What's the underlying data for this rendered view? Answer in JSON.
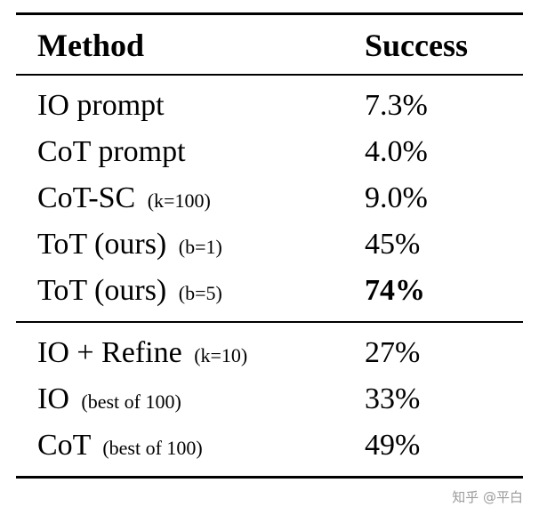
{
  "header": {
    "method": "Method",
    "success": "Success"
  },
  "rows_group1": [
    {
      "label": "IO prompt",
      "note": "",
      "success": "7.3%"
    },
    {
      "label": "CoT prompt",
      "note": "",
      "success": "4.0%"
    },
    {
      "label": "CoT-SC",
      "note": "(k=100)",
      "success": "9.0%"
    },
    {
      "label": "ToT (ours)",
      "note": "(b=1)",
      "success": "45%"
    },
    {
      "label": "ToT (ours)",
      "note": "(b=5)",
      "success": "74%"
    }
  ],
  "rows_group2": [
    {
      "label": "IO + Refine",
      "note": "(k=10)",
      "success": "27%"
    },
    {
      "label": "IO",
      "note": "(best of 100)",
      "success": "33%"
    },
    {
      "label": "CoT",
      "note": "(best of 100)",
      "success": "49%"
    }
  ],
  "watermark": "知乎 @平白",
  "colors": {
    "rule": "#000000",
    "background": "#ffffff",
    "watermark_text": "#9b9b9b"
  }
}
